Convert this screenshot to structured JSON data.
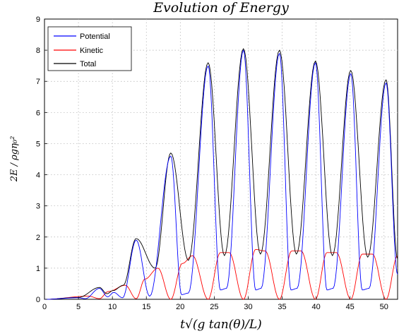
{
  "chart_data": {
    "type": "line",
    "title": "Evolution of Energy",
    "xlabel": "t√(g tan(θ)/L)",
    "ylabel": "2E / ρgη₀²",
    "xlim": [
      0,
      52
    ],
    "ylim": [
      0,
      9
    ],
    "xticks": [
      0,
      5,
      10,
      15,
      20,
      25,
      30,
      35,
      40,
      45,
      50
    ],
    "yticks": [
      0,
      1,
      2,
      3,
      4,
      5,
      6,
      7,
      8,
      9
    ],
    "grid": true,
    "legend_position": "top-left",
    "series": [
      {
        "name": "Potential",
        "color": "#0000ff",
        "peaks": [
          [
            5.0,
            0.05
          ],
          [
            8.1,
            0.35
          ],
          [
            10.2,
            0.22
          ],
          [
            13.5,
            1.9
          ],
          [
            18.6,
            4.6
          ],
          [
            24.1,
            7.5
          ],
          [
            29.3,
            8.0
          ],
          [
            34.6,
            7.9
          ],
          [
            39.9,
            7.6
          ],
          [
            45.1,
            7.25
          ],
          [
            50.3,
            6.95
          ]
        ],
        "troughs": [
          [
            0,
            0.0
          ],
          [
            6.0,
            0.02
          ],
          [
            9.3,
            0.08
          ],
          [
            11.5,
            0.05
          ],
          [
            15.5,
            0.1
          ],
          [
            20.2,
            0.15
          ],
          [
            21.2,
            0.2
          ],
          [
            25.9,
            0.3
          ],
          [
            26.8,
            0.35
          ],
          [
            31.1,
            0.3
          ],
          [
            31.9,
            0.35
          ],
          [
            36.3,
            0.3
          ],
          [
            37.2,
            0.35
          ],
          [
            41.6,
            0.3
          ],
          [
            42.5,
            0.35
          ],
          [
            46.8,
            0.3
          ],
          [
            47.8,
            0.35
          ],
          [
            52,
            0.8
          ]
        ]
      },
      {
        "name": "Kinetic",
        "color": "#ff0000",
        "peaks": [
          [
            6.5,
            0.1
          ],
          [
            9.4,
            0.25
          ],
          [
            11.9,
            0.45
          ],
          [
            14.8,
            0.65
          ],
          [
            16.7,
            1.0
          ],
          [
            20.3,
            1.15
          ],
          [
            21.8,
            1.4
          ],
          [
            25.9,
            1.5
          ],
          [
            27.2,
            1.5
          ],
          [
            31.1,
            1.6
          ],
          [
            32.5,
            1.55
          ],
          [
            36.4,
            1.55
          ],
          [
            37.8,
            1.55
          ],
          [
            41.6,
            1.5
          ],
          [
            43.0,
            1.5
          ],
          [
            46.8,
            1.45
          ],
          [
            48.3,
            1.45
          ],
          [
            52.0,
            1.4
          ]
        ],
        "troughs": [
          [
            0,
            0.0
          ],
          [
            8.1,
            0.02
          ],
          [
            13.5,
            0.02
          ],
          [
            18.6,
            0.0
          ],
          [
            24.1,
            0.0
          ],
          [
            29.3,
            0.0
          ],
          [
            34.6,
            0.0
          ],
          [
            39.9,
            0.0
          ],
          [
            45.1,
            0.0
          ],
          [
            50.3,
            0.0
          ]
        ]
      },
      {
        "name": "Total",
        "color": "#000000",
        "peaks": [
          [
            8.1,
            0.38
          ],
          [
            10.1,
            0.28
          ],
          [
            13.5,
            1.95
          ],
          [
            18.6,
            4.7
          ],
          [
            24.1,
            7.6
          ],
          [
            29.3,
            8.05
          ],
          [
            34.6,
            8.0
          ],
          [
            39.9,
            7.65
          ],
          [
            45.1,
            7.35
          ],
          [
            50.3,
            7.05
          ]
        ],
        "troughs": [
          [
            0,
            0.0
          ],
          [
            5.0,
            0.06
          ],
          [
            9.2,
            0.18
          ],
          [
            11.6,
            0.45
          ],
          [
            16.3,
            1.0
          ],
          [
            21.2,
            1.25
          ],
          [
            26.5,
            1.4
          ],
          [
            31.8,
            1.45
          ],
          [
            37.1,
            1.45
          ],
          [
            42.4,
            1.4
          ],
          [
            47.6,
            1.35
          ],
          [
            52,
            1.3
          ]
        ]
      }
    ]
  }
}
